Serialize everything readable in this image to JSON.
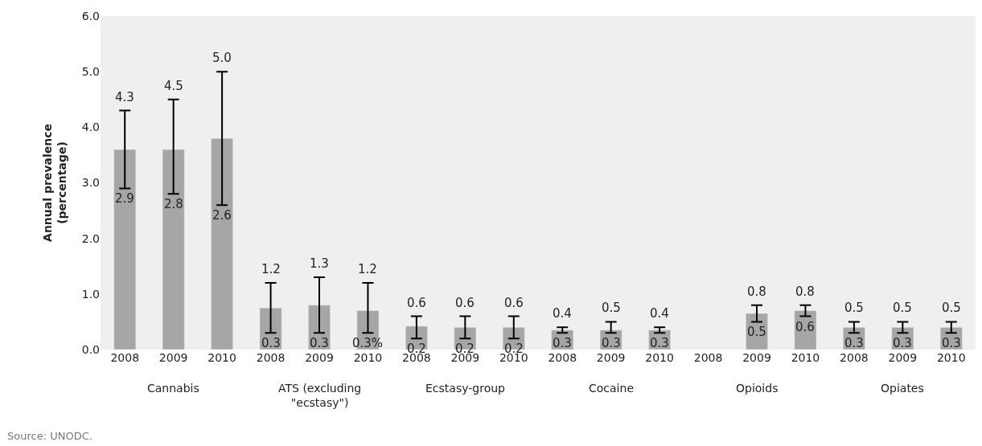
{
  "chart_data": {
    "type": "bar",
    "ylabel": "Annual prevalence\n(percentage)",
    "categories": [
      "2008",
      "2009",
      "2010",
      "2008",
      "2009",
      "2010",
      "2008",
      "2009",
      "2010",
      "2008",
      "2009",
      "2010",
      "2008",
      "2009",
      "2010",
      "2008",
      "2009",
      "2010"
    ],
    "values": [
      3.6,
      3.6,
      3.8,
      0.75,
      0.8,
      0.7,
      0.42,
      0.4,
      0.4,
      0.35,
      0.35,
      0.35,
      null,
      0.65,
      0.7,
      0.4,
      0.4,
      0.4
    ],
    "errors": [
      [
        2.9,
        4.3
      ],
      [
        2.8,
        4.5
      ],
      [
        2.6,
        5.0
      ],
      [
        0.3,
        1.2
      ],
      [
        0.3,
        1.3
      ],
      [
        0.3,
        1.2
      ],
      [
        0.2,
        0.6
      ],
      [
        0.2,
        0.6
      ],
      [
        0.2,
        0.6
      ],
      [
        0.3,
        0.4
      ],
      [
        0.3,
        0.5
      ],
      [
        0.3,
        0.4
      ],
      null,
      [
        0.5,
        0.8
      ],
      [
        0.6,
        0.8
      ],
      [
        0.3,
        0.5
      ],
      [
        0.3,
        0.5
      ],
      [
        0.3,
        0.5
      ]
    ],
    "color": "#a6a6a6",
    "ylim": [
      0,
      6
    ],
    "yticks": [
      {
        "value": 0,
        "label": "0.0"
      },
      {
        "value": 1,
        "label": "1.0"
      },
      {
        "value": 2,
        "label": "2.0"
      },
      {
        "value": 3,
        "label": "3.0"
      },
      {
        "value": 4,
        "label": "4.0"
      },
      {
        "value": 5,
        "label": "5.0"
      },
      {
        "value": 6,
        "label": "6.0"
      }
    ],
    "grid": false,
    "legend": false,
    "annotations": [
      "Cannabis",
      "ATS (excluding\n\"ecstasy\")",
      "Ecstasy-group",
      "Cocaine",
      "Opioids",
      "Opiates",
      "Source: UNODC.",
      "4.3",
      "2.9",
      "4.5",
      "2.8",
      "5.0",
      "2.6",
      "1.2",
      "0.3",
      "1.3",
      "0.3",
      "1.2",
      "0.3%",
      "0.6",
      "0.2",
      "0.6",
      "0.2",
      "0.6",
      "0.2",
      "0.4",
      "0.3",
      "0.5",
      "0.3",
      "0.4",
      "0.3",
      "0.8",
      "0.5",
      "0.8",
      "0.6",
      "0.5",
      "0.3",
      "0.5",
      "0.3",
      "0.5",
      "0.3"
    ]
  }
}
